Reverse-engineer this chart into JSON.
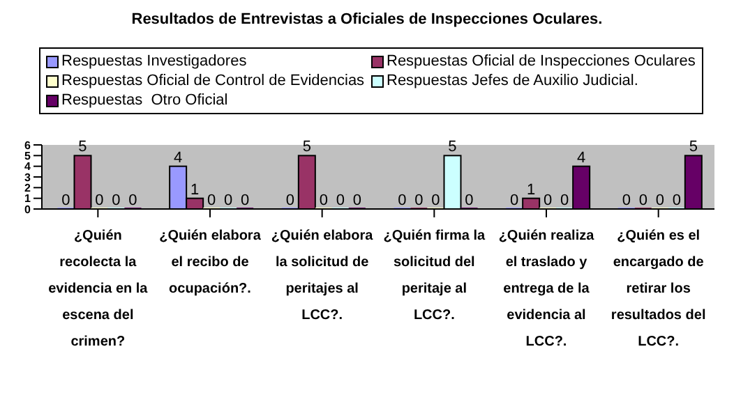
{
  "chart_data": {
    "type": "bar",
    "title": "Resultados de Entrevistas a Oficiales de Inspecciones Oculares.",
    "categories": [
      "¿Quién recolecta la evidencia en la escena del crimen?",
      "¿Quién elabora el recibo de ocupación?.",
      "¿Quién elabora la solicitud de peritajes al LCC?.",
      "¿Quién firma la solicitud del peritaje al LCC?.",
      "¿Quién realiza el traslado y entrega de la evidencia al LCC?.",
      "¿Quién es el encargado de retirar los resultados del LCC?."
    ],
    "series": [
      {
        "name": "Respuestas Investigadores",
        "color": "#9999ff",
        "values": [
          0,
          4,
          0,
          0,
          0,
          0
        ]
      },
      {
        "name": "Respuestas Oficial de Inspecciones Oculares",
        "color": "#993366",
        "values": [
          5,
          1,
          5,
          0,
          1,
          0
        ]
      },
      {
        "name": "Respuestas Oficial de Control de Evidencias",
        "color": "#ffffcc",
        "values": [
          0,
          0,
          0,
          0,
          0,
          0
        ]
      },
      {
        "name": "Respuestas Jefes de Auxilio Judicial.",
        "color": "#ccffff",
        "values": [
          0,
          0,
          0,
          5,
          0,
          0
        ]
      },
      {
        "name": "Respuestas  Otro Oficial",
        "color": "#660066",
        "values": [
          0,
          0,
          0,
          0,
          4,
          5
        ]
      }
    ],
    "ylim": [
      0,
      6
    ],
    "yticks": [
      0,
      1,
      2,
      3,
      4,
      5,
      6
    ],
    "data_labels": true,
    "legend": "top"
  }
}
